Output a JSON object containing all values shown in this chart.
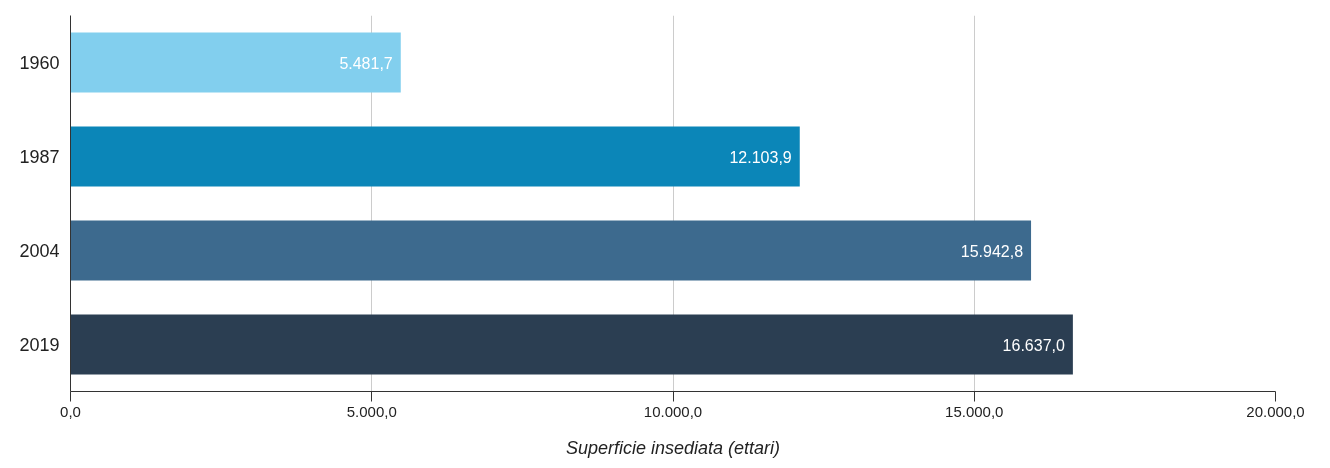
{
  "chart_data": {
    "type": "bar",
    "orientation": "horizontal",
    "xlabel": "Superficie insediata (ettari)",
    "categories": [
      "1960",
      "1987",
      "2004",
      "2019"
    ],
    "values": [
      5481.7,
      12103.9,
      15942.8,
      16637.0
    ],
    "colors": [
      "#82cfee",
      "#0b86b8",
      "#3d6a8e",
      "#2b3e52"
    ],
    "value_labels": [
      "5.481,7",
      "12.103,9",
      "15.942,8",
      "16.637,0"
    ],
    "xlim": [
      0,
      20000
    ],
    "xticks": [
      {
        "value": 0,
        "label": "0,0"
      },
      {
        "value": 5000,
        "label": "5.000,0"
      },
      {
        "value": 10000,
        "label": "10.000,0"
      },
      {
        "value": 15000,
        "label": "15.000,0"
      },
      {
        "value": 20000,
        "label": "20.000,0"
      }
    ],
    "grid": "x"
  }
}
